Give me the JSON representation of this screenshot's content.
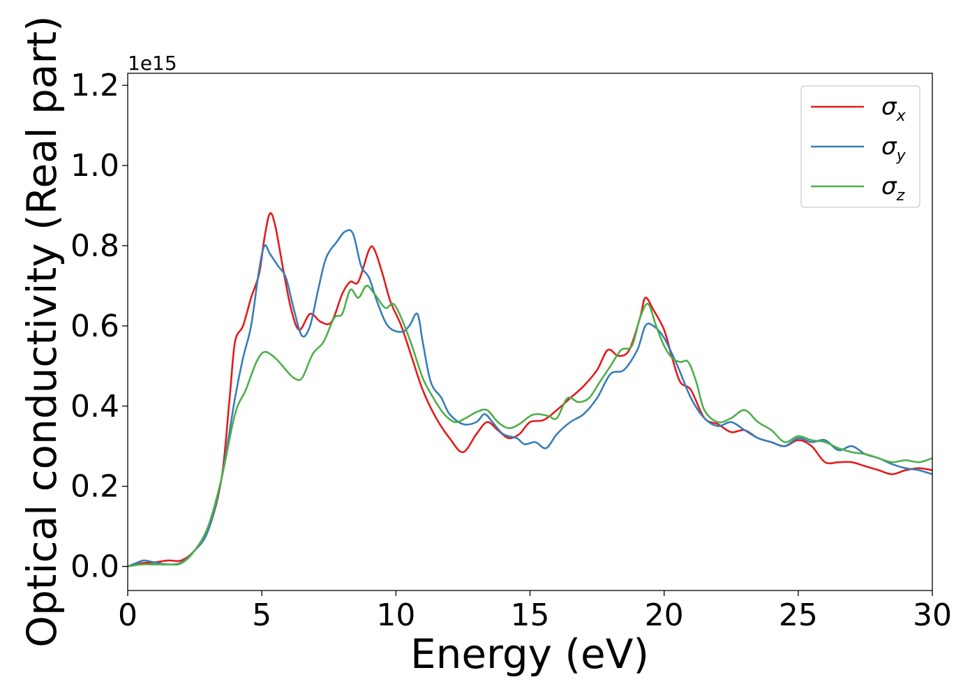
{
  "chart_data": {
    "type": "line",
    "xlabel": "Energy (eV)",
    "ylabel": "Optical conductivity (Real part)",
    "y_offset_label": "1e15",
    "xlim": [
      0,
      30
    ],
    "ylim": [
      -0.06,
      1.23
    ],
    "xticks": [
      0,
      5,
      10,
      15,
      20,
      25,
      30
    ],
    "yticks": [
      0.0,
      0.2,
      0.4,
      0.6,
      0.8,
      1.0,
      1.2
    ],
    "xtick_labels": [
      "0",
      "5",
      "10",
      "15",
      "20",
      "25",
      "30"
    ],
    "ytick_labels": [
      "0.0",
      "0.2",
      "0.4",
      "0.6",
      "0.8",
      "1.0",
      "1.2"
    ],
    "grid": false,
    "legend_position": "top-right",
    "series": [
      {
        "name": "σx",
        "name_base": "σ",
        "name_sub": "x",
        "color": "#e41a1c",
        "points": [
          [
            0,
            0
          ],
          [
            0.5,
            0.008
          ],
          [
            1,
            0.01
          ],
          [
            1.5,
            0.015
          ],
          [
            2,
            0.015
          ],
          [
            2.5,
            0.04
          ],
          [
            3,
            0.09
          ],
          [
            3.5,
            0.22
          ],
          [
            3.8,
            0.42
          ],
          [
            4,
            0.56
          ],
          [
            4.3,
            0.6
          ],
          [
            4.6,
            0.67
          ],
          [
            4.9,
            0.73
          ],
          [
            5.1,
            0.82
          ],
          [
            5.3,
            0.88
          ],
          [
            5.5,
            0.85
          ],
          [
            5.8,
            0.74
          ],
          [
            6.1,
            0.64
          ],
          [
            6.4,
            0.59
          ],
          [
            6.8,
            0.63
          ],
          [
            7.2,
            0.61
          ],
          [
            7.6,
            0.61
          ],
          [
            8,
            0.68
          ],
          [
            8.3,
            0.71
          ],
          [
            8.6,
            0.71
          ],
          [
            9,
            0.79
          ],
          [
            9.2,
            0.79
          ],
          [
            9.5,
            0.73
          ],
          [
            9.8,
            0.66
          ],
          [
            10.2,
            0.6
          ],
          [
            10.6,
            0.52
          ],
          [
            11,
            0.44
          ],
          [
            11.5,
            0.37
          ],
          [
            12,
            0.32
          ],
          [
            12.5,
            0.285
          ],
          [
            13,
            0.33
          ],
          [
            13.4,
            0.36
          ],
          [
            13.8,
            0.34
          ],
          [
            14.2,
            0.32
          ],
          [
            14.6,
            0.33
          ],
          [
            15,
            0.36
          ],
          [
            15.5,
            0.365
          ],
          [
            16,
            0.39
          ],
          [
            16.5,
            0.42
          ],
          [
            17,
            0.45
          ],
          [
            17.5,
            0.49
          ],
          [
            17.9,
            0.54
          ],
          [
            18.3,
            0.525
          ],
          [
            18.7,
            0.54
          ],
          [
            19.1,
            0.62
          ],
          [
            19.3,
            0.67
          ],
          [
            19.6,
            0.64
          ],
          [
            20,
            0.59
          ],
          [
            20.3,
            0.52
          ],
          [
            20.6,
            0.46
          ],
          [
            21,
            0.44
          ],
          [
            21.5,
            0.37
          ],
          [
            22,
            0.355
          ],
          [
            22.5,
            0.335
          ],
          [
            23,
            0.34
          ],
          [
            23.5,
            0.32
          ],
          [
            24,
            0.31
          ],
          [
            24.5,
            0.3
          ],
          [
            25,
            0.315
          ],
          [
            25.5,
            0.3
          ],
          [
            26,
            0.26
          ],
          [
            26.5,
            0.26
          ],
          [
            27,
            0.26
          ],
          [
            27.5,
            0.25
          ],
          [
            28,
            0.24
          ],
          [
            28.5,
            0.23
          ],
          [
            29,
            0.24
          ],
          [
            29.5,
            0.245
          ],
          [
            30,
            0.24
          ]
        ]
      },
      {
        "name": "σy",
        "name_base": "σ",
        "name_sub": "y",
        "color": "#377eb8",
        "points": [
          [
            0,
            0
          ],
          [
            0.3,
            0.008
          ],
          [
            0.6,
            0.015
          ],
          [
            1,
            0.01
          ],
          [
            1.5,
            0.005
          ],
          [
            2,
            0.01
          ],
          [
            2.5,
            0.04
          ],
          [
            3,
            0.09
          ],
          [
            3.5,
            0.22
          ],
          [
            4,
            0.42
          ],
          [
            4.3,
            0.52
          ],
          [
            4.6,
            0.6
          ],
          [
            4.9,
            0.74
          ],
          [
            5.1,
            0.8
          ],
          [
            5.3,
            0.78
          ],
          [
            5.6,
            0.75
          ],
          [
            5.9,
            0.72
          ],
          [
            6.2,
            0.64
          ],
          [
            6.5,
            0.575
          ],
          [
            6.8,
            0.6
          ],
          [
            7.1,
            0.69
          ],
          [
            7.4,
            0.77
          ],
          [
            7.8,
            0.81
          ],
          [
            8.1,
            0.835
          ],
          [
            8.4,
            0.83
          ],
          [
            8.7,
            0.75
          ],
          [
            9,
            0.72
          ],
          [
            9.3,
            0.66
          ],
          [
            9.7,
            0.6
          ],
          [
            10.2,
            0.585
          ],
          [
            10.5,
            0.6
          ],
          [
            10.8,
            0.63
          ],
          [
            11,
            0.56
          ],
          [
            11.3,
            0.46
          ],
          [
            11.7,
            0.42
          ],
          [
            12,
            0.38
          ],
          [
            12.5,
            0.355
          ],
          [
            13,
            0.36
          ],
          [
            13.3,
            0.38
          ],
          [
            13.6,
            0.36
          ],
          [
            14,
            0.33
          ],
          [
            14.5,
            0.32
          ],
          [
            14.8,
            0.305
          ],
          [
            15.2,
            0.31
          ],
          [
            15.6,
            0.295
          ],
          [
            16,
            0.33
          ],
          [
            16.5,
            0.36
          ],
          [
            17,
            0.38
          ],
          [
            17.5,
            0.42
          ],
          [
            18,
            0.48
          ],
          [
            18.5,
            0.49
          ],
          [
            19,
            0.54
          ],
          [
            19.3,
            0.6
          ],
          [
            19.6,
            0.6
          ],
          [
            20,
            0.57
          ],
          [
            20.5,
            0.5
          ],
          [
            21,
            0.42
          ],
          [
            21.5,
            0.37
          ],
          [
            22,
            0.35
          ],
          [
            22.5,
            0.36
          ],
          [
            23,
            0.34
          ],
          [
            23.5,
            0.32
          ],
          [
            24,
            0.31
          ],
          [
            24.5,
            0.3
          ],
          [
            25,
            0.32
          ],
          [
            25.5,
            0.31
          ],
          [
            26,
            0.315
          ],
          [
            26.5,
            0.29
          ],
          [
            27,
            0.3
          ],
          [
            27.5,
            0.28
          ],
          [
            28,
            0.27
          ],
          [
            28.5,
            0.255
          ],
          [
            29,
            0.245
          ],
          [
            29.5,
            0.24
          ],
          [
            30,
            0.23
          ]
        ]
      },
      {
        "name": "σz",
        "name_base": "σ",
        "name_sub": "z",
        "color": "#4daf4a",
        "points": [
          [
            0,
            0
          ],
          [
            0.5,
            0.005
          ],
          [
            1,
            0.005
          ],
          [
            1.5,
            0.005
          ],
          [
            2,
            0.008
          ],
          [
            2.5,
            0.04
          ],
          [
            3,
            0.1
          ],
          [
            3.5,
            0.22
          ],
          [
            4,
            0.38
          ],
          [
            4.4,
            0.44
          ],
          [
            4.8,
            0.51
          ],
          [
            5.1,
            0.535
          ],
          [
            5.5,
            0.52
          ],
          [
            5.9,
            0.49
          ],
          [
            6.2,
            0.47
          ],
          [
            6.5,
            0.47
          ],
          [
            6.9,
            0.53
          ],
          [
            7.3,
            0.56
          ],
          [
            7.7,
            0.62
          ],
          [
            8,
            0.63
          ],
          [
            8.3,
            0.69
          ],
          [
            8.6,
            0.67
          ],
          [
            8.9,
            0.7
          ],
          [
            9.2,
            0.68
          ],
          [
            9.6,
            0.645
          ],
          [
            9.9,
            0.655
          ],
          [
            10.2,
            0.62
          ],
          [
            10.6,
            0.55
          ],
          [
            11,
            0.47
          ],
          [
            11.4,
            0.42
          ],
          [
            11.8,
            0.38
          ],
          [
            12.2,
            0.36
          ],
          [
            12.6,
            0.37
          ],
          [
            13,
            0.385
          ],
          [
            13.4,
            0.39
          ],
          [
            13.8,
            0.36
          ],
          [
            14.2,
            0.345
          ],
          [
            14.6,
            0.355
          ],
          [
            15,
            0.375
          ],
          [
            15.3,
            0.38
          ],
          [
            15.7,
            0.375
          ],
          [
            16,
            0.37
          ],
          [
            16.4,
            0.42
          ],
          [
            16.8,
            0.41
          ],
          [
            17.2,
            0.42
          ],
          [
            17.6,
            0.46
          ],
          [
            18,
            0.5
          ],
          [
            18.4,
            0.54
          ],
          [
            18.8,
            0.55
          ],
          [
            19.1,
            0.62
          ],
          [
            19.4,
            0.655
          ],
          [
            19.7,
            0.6
          ],
          [
            20,
            0.55
          ],
          [
            20.3,
            0.52
          ],
          [
            20.6,
            0.51
          ],
          [
            20.9,
            0.51
          ],
          [
            21.2,
            0.46
          ],
          [
            21.5,
            0.39
          ],
          [
            22,
            0.36
          ],
          [
            22.5,
            0.37
          ],
          [
            23,
            0.39
          ],
          [
            23.5,
            0.36
          ],
          [
            24,
            0.34
          ],
          [
            24.5,
            0.31
          ],
          [
            25,
            0.325
          ],
          [
            25.5,
            0.315
          ],
          [
            26,
            0.31
          ],
          [
            26.5,
            0.295
          ],
          [
            27,
            0.285
          ],
          [
            27.5,
            0.28
          ],
          [
            28,
            0.27
          ],
          [
            28.5,
            0.26
          ],
          [
            29,
            0.265
          ],
          [
            29.5,
            0.26
          ],
          [
            30,
            0.27
          ]
        ]
      }
    ]
  }
}
